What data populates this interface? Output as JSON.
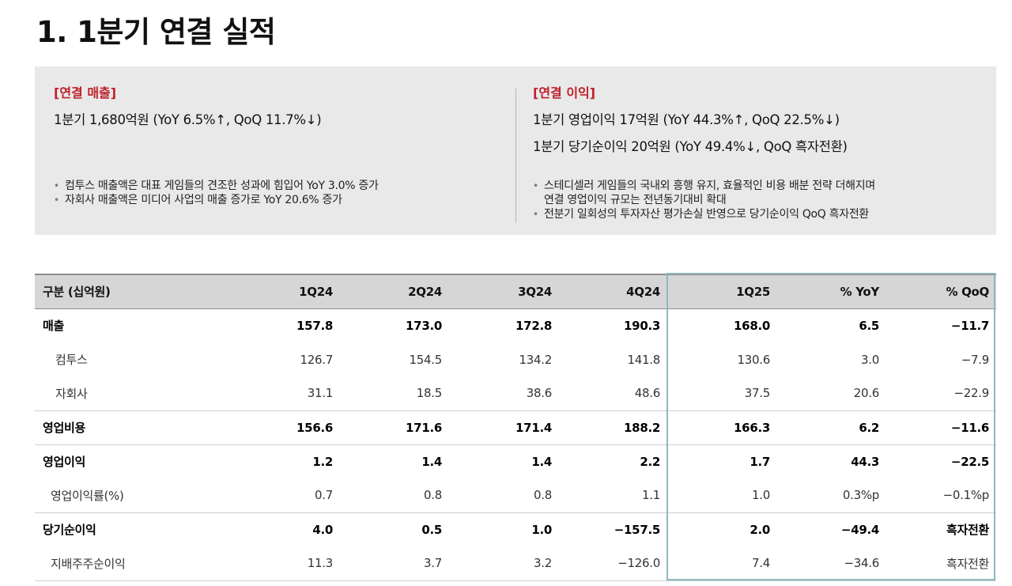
{
  "page": {
    "title": "1. 1분기 연결 실적"
  },
  "summary": {
    "revenue": {
      "heading": "[연결 매출]",
      "headline": "1분기 1,680억원 (YoY 6.5%↑, QoQ 11.7%↓)",
      "bullets": [
        "컴투스 매출액은 대표 게임들의 견조한 성과에 힘입어 YoY 3.0% 증가",
        "자회사 매출액은 미디어 사업의 매출 증가로 YoY 20.6% 증가"
      ]
    },
    "profit": {
      "heading": "[연결 이익]",
      "headline_1": "1분기 영업이익 17억원 (YoY 44.3%↑, QoQ 22.5%↓)",
      "headline_2": "1분기 당기순이익 20억원 (YoY 49.4%↓, QoQ 흑자전환)",
      "bullet_1_line_1": "스테디셀러 게임들의 국내외 흥행 유지, 효율적인 비용 배분 전략 더해지며",
      "bullet_1_line_2": "연결 영업이익 규모는 전년동기대비 확대",
      "bullet_2": "전분기 일회성의 투자자산 평가손실 반영으로 당기순이익 QoQ 흑자전환"
    }
  },
  "table": {
    "headers": [
      "구분 (십억원)",
      "1Q24",
      "2Q24",
      "3Q24",
      "4Q24",
      "1Q25",
      "% YoY",
      "% QoQ"
    ],
    "rows": [
      {
        "label": "매출",
        "cells": [
          "157.8",
          "173.0",
          "172.8",
          "190.3",
          "168.0",
          "6.5",
          "−11.7"
        ]
      },
      {
        "label": "컴투스",
        "cells": [
          "126.7",
          "154.5",
          "134.2",
          "141.8",
          "130.6",
          "3.0",
          "−7.9"
        ]
      },
      {
        "label": "자회사",
        "cells": [
          "31.1",
          "18.5",
          "38.6",
          "48.6",
          "37.5",
          "20.6",
          "−22.9"
        ]
      },
      {
        "label": "영업비용",
        "cells": [
          "156.6",
          "171.6",
          "171.4",
          "188.2",
          "166.3",
          "6.2",
          "−11.6"
        ]
      },
      {
        "label": "영업이익",
        "cells": [
          "1.2",
          "1.4",
          "1.4",
          "2.2",
          "1.7",
          "44.3",
          "−22.5"
        ]
      },
      {
        "label": "영업이익률(%)",
        "cells": [
          "0.7",
          "0.8",
          "0.8",
          "1.1",
          "1.0",
          "0.3%p",
          "−0.1%p"
        ]
      },
      {
        "label": "당기순이익",
        "cells": [
          "4.0",
          "0.5",
          "1.0",
          "−157.5",
          "2.0",
          "−49.4",
          "흑자전환"
        ]
      },
      {
        "label": "지배주주순이익",
        "cells": [
          "11.3",
          "3.7",
          "3.2",
          "−126.0",
          "7.4",
          "−34.6",
          "흑자전환"
        ]
      }
    ]
  },
  "colors": {
    "heading_red": "#c0202a",
    "summary_bg": "#e9e9e9",
    "header_bg": "#d6d6d6",
    "highlight_border": "#8fb8bf"
  }
}
